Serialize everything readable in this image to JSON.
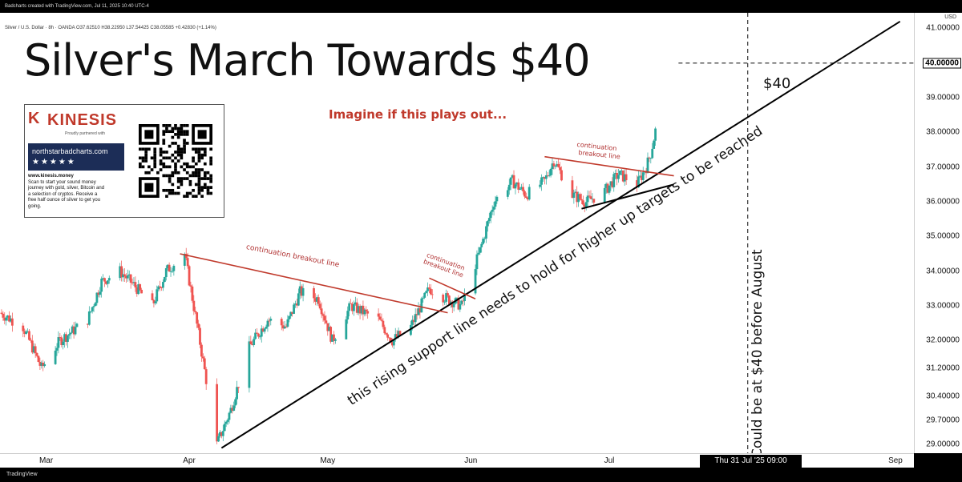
{
  "header": {
    "source_line": "Badcharts created with TradingView.com, Jul 11, 2025 10:40 UTC-4",
    "symbol_line": "Silver / U.S. Dollar · 8h · OANDA  O37.62510 H38.22950 L37.54425 C38.05585 +0.42830 (+1.14%)"
  },
  "footer": {
    "brand": "TradingView"
  },
  "title": "Silver's March Towards $40",
  "subtitle": "Imagine if this plays out...",
  "annotations": {
    "target": "$40",
    "vertical": "Could be at $40 before August",
    "support": "this rising support line needs to hold for higher up targets to be reached",
    "cbl1": "continuation breakout line",
    "cbl2_a": "continuation",
    "cbl2_b": "breakout line",
    "cbl3_a": "continuation",
    "cbl3_b": "breakout line"
  },
  "ad": {
    "logo_mark": "K",
    "brand": "KINESIS",
    "partner": "Proudly partnered with",
    "site": "northstarbadcharts.com",
    "stars": "★★★★★",
    "url": "www.kinesis.money",
    "text_lines": [
      "Scan to start your sound money",
      "journey with gold, silver, Bitcoin and",
      "a selection of cryptos. Receive a",
      "free half ounce of silver to get you",
      "going."
    ]
  },
  "axis": {
    "currency": "USD",
    "current_price_label": "40.00000",
    "crosshair_time": "Thu 31 Jul '25   09:00"
  },
  "colors": {
    "up": "#26a69a",
    "down": "#ef5350",
    "trendline_red": "#c0392b"
  },
  "chart_data": {
    "type": "candlestick",
    "title": "Silver's March Towards $40",
    "x_range": [
      "2025-02-19",
      "2025-09-05"
    ],
    "ylim": [
      28.75,
      41.45
    ],
    "y_ticks": [
      {
        "value": 29.0,
        "label": "29.00000"
      },
      {
        "value": 29.7,
        "label": "29.70000"
      },
      {
        "value": 30.4,
        "label": "30.40000"
      },
      {
        "value": 31.2,
        "label": "31.20000"
      },
      {
        "value": 32.0,
        "label": "32.00000"
      },
      {
        "value": 33.0,
        "label": "33.00000"
      },
      {
        "value": 34.0,
        "label": "34.00000"
      },
      {
        "value": 35.0,
        "label": "35.00000"
      },
      {
        "value": 36.0,
        "label": "36.00000"
      },
      {
        "value": 37.0,
        "label": "37.00000"
      },
      {
        "value": 38.0,
        "label": "38.00000"
      },
      {
        "value": 39.0,
        "label": "39.00000"
      },
      {
        "value": 41.0,
        "label": "41.00000"
      }
    ],
    "x_ticks": [
      {
        "date": "2025-03-01",
        "label": "Mar"
      },
      {
        "date": "2025-04-01",
        "label": "Apr"
      },
      {
        "date": "2025-05-01",
        "label": "May"
      },
      {
        "date": "2025-06-01",
        "label": "Jun"
      },
      {
        "date": "2025-07-01",
        "label": "Jul"
      },
      {
        "date": "2025-09-01",
        "label": "Sep"
      }
    ],
    "series": [
      {
        "date": "2025-02-19",
        "close": 32.8
      },
      {
        "date": "2025-02-24",
        "close": 32.4
      },
      {
        "date": "2025-02-28",
        "close": 31.2
      },
      {
        "date": "2025-03-04",
        "close": 32.0
      },
      {
        "date": "2025-03-10",
        "close": 32.6
      },
      {
        "date": "2025-03-13",
        "close": 33.7
      },
      {
        "date": "2025-03-17",
        "close": 34.0
      },
      {
        "date": "2025-03-20",
        "close": 33.6
      },
      {
        "date": "2025-03-24",
        "close": 33.0
      },
      {
        "date": "2025-03-27",
        "close": 34.0
      },
      {
        "date": "2025-03-31",
        "close": 34.5
      },
      {
        "date": "2025-04-03",
        "close": 32.2
      },
      {
        "date": "2025-04-07",
        "close": 29.0
      },
      {
        "date": "2025-04-10",
        "close": 30.0
      },
      {
        "date": "2025-04-14",
        "close": 31.8
      },
      {
        "date": "2025-04-18",
        "close": 32.6
      },
      {
        "date": "2025-04-22",
        "close": 32.4
      },
      {
        "date": "2025-04-25",
        "close": 33.4
      },
      {
        "date": "2025-04-29",
        "close": 33.2
      },
      {
        "date": "2025-05-02",
        "close": 32.0
      },
      {
        "date": "2025-05-06",
        "close": 33.0
      },
      {
        "date": "2025-05-12",
        "close": 32.6
      },
      {
        "date": "2025-05-15",
        "close": 32.0
      },
      {
        "date": "2025-05-19",
        "close": 32.4
      },
      {
        "date": "2025-05-23",
        "close": 33.5
      },
      {
        "date": "2025-05-27",
        "close": 33.2
      },
      {
        "date": "2025-05-30",
        "close": 33.0
      },
      {
        "date": "2025-06-03",
        "close": 34.6
      },
      {
        "date": "2025-06-06",
        "close": 36.0
      },
      {
        "date": "2025-06-10",
        "close": 36.6
      },
      {
        "date": "2025-06-13",
        "close": 36.2
      },
      {
        "date": "2025-06-17",
        "close": 36.6
      },
      {
        "date": "2025-06-19",
        "close": 37.2
      },
      {
        "date": "2025-06-23",
        "close": 36.2
      },
      {
        "date": "2025-06-26",
        "close": 36.0
      },
      {
        "date": "2025-06-30",
        "close": 36.3
      },
      {
        "date": "2025-07-03",
        "close": 36.8
      },
      {
        "date": "2025-07-07",
        "close": 36.5
      },
      {
        "date": "2025-07-09",
        "close": 37.0
      },
      {
        "date": "2025-07-10",
        "close": 37.4
      },
      {
        "date": "2025-07-11",
        "close": 38.05
      }
    ],
    "lines": [
      {
        "name": "target-level",
        "style": "dashed",
        "from": {
          "date": "2025-07-16",
          "y": 40.0
        },
        "to": {
          "date": "2025-09-05",
          "y": 40.0
        }
      },
      {
        "name": "vertical-marker",
        "style": "dashed",
        "from": {
          "date": "2025-07-31",
          "y": 41.45
        },
        "to": {
          "date": "2025-07-31",
          "y": 28.75
        }
      }
    ],
    "trendlines": [
      {
        "name": "rising-support",
        "from": {
          "date": "2025-04-08",
          "y": 28.9
        },
        "to": {
          "date": "2025-09-02",
          "y": 41.2
        }
      },
      {
        "name": "continuation-breakout-1",
        "from": {
          "date": "2025-03-30",
          "y": 34.5
        },
        "to": {
          "date": "2025-05-27",
          "y": 32.8
        }
      },
      {
        "name": "continuation-breakout-2",
        "from": {
          "date": "2025-05-23",
          "y": 33.8
        },
        "to": {
          "date": "2025-06-02",
          "y": 33.2
        }
      },
      {
        "name": "continuation-breakout-3",
        "from": {
          "date": "2025-06-17",
          "y": 37.3
        },
        "to": {
          "date": "2025-07-15",
          "y": 36.75
        }
      },
      {
        "name": "inner-support",
        "from": {
          "date": "2025-06-25",
          "y": 35.8
        },
        "to": {
          "date": "2025-07-15",
          "y": 36.5
        }
      }
    ]
  }
}
